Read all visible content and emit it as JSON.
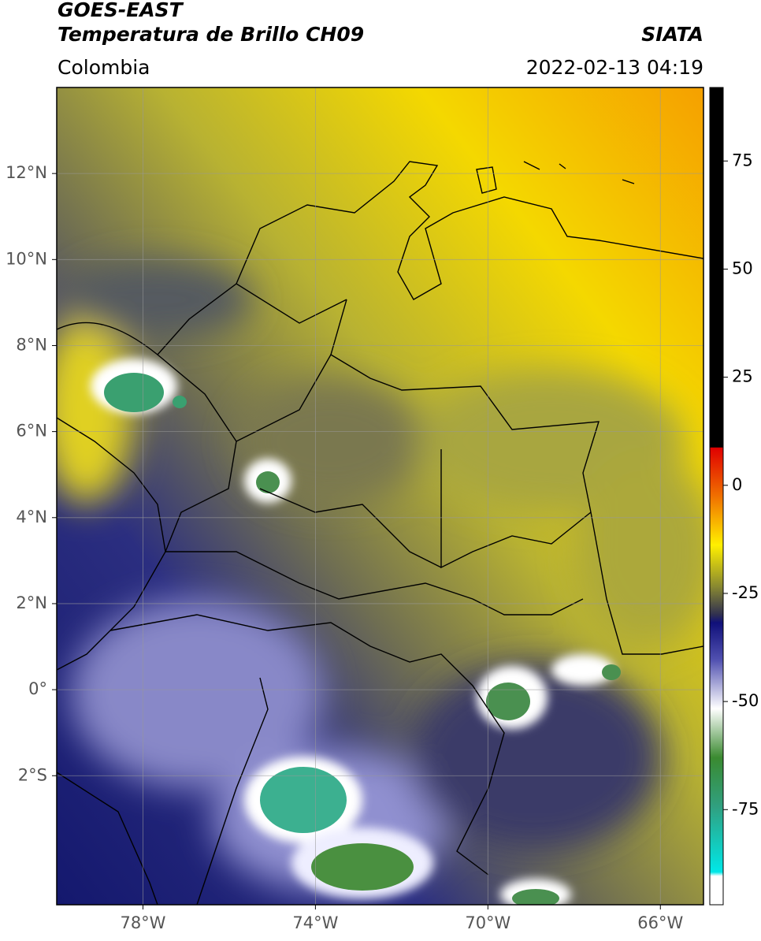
{
  "header": {
    "title": "GOES-EAST",
    "subtitle": "Temperatura de Brillo CH09",
    "region": "Colombia",
    "source": "SIATA",
    "datetime": "2022-02-13 04:19"
  },
  "map": {
    "xlim": [
      -80,
      -65
    ],
    "ylim": [
      -5,
      14
    ],
    "xticks": [
      {
        "value": -78,
        "label": "78°W"
      },
      {
        "value": -74,
        "label": "74°W"
      },
      {
        "value": -70,
        "label": "70°W"
      },
      {
        "value": -66,
        "label": "66°W"
      }
    ],
    "yticks": [
      {
        "value": 12,
        "label": "12°N"
      },
      {
        "value": 10,
        "label": "10°N"
      },
      {
        "value": 8,
        "label": "8°N"
      },
      {
        "value": 6,
        "label": "6°N"
      },
      {
        "value": 4,
        "label": "4°N"
      },
      {
        "value": 2,
        "label": "2°N"
      },
      {
        "value": 0,
        "label": "0°"
      },
      {
        "value": -2,
        "label": "2°S"
      }
    ]
  },
  "colorbar": {
    "lim": [
      -97,
      92
    ],
    "ticks": [
      75,
      50,
      25,
      0,
      -25,
      -50,
      -75
    ]
  }
}
